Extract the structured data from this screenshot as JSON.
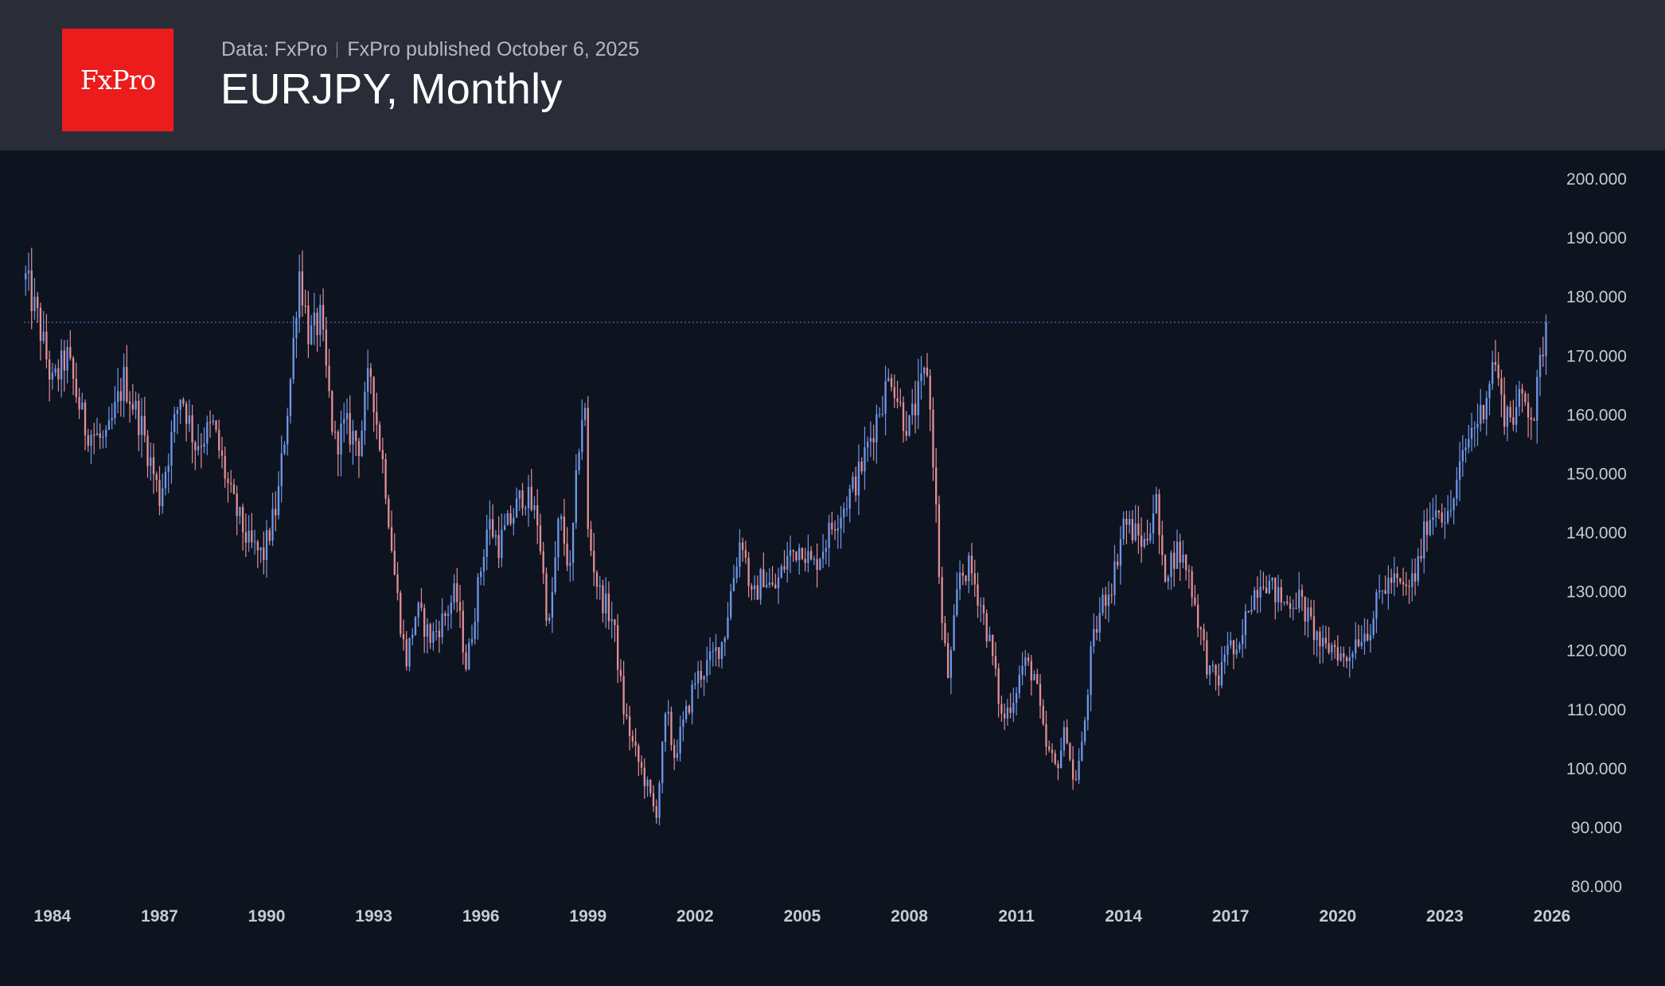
{
  "header": {
    "logo_text": "FxPro",
    "source": "Data: FxPro",
    "published": "FxPro published October 6, 2025",
    "title": "EURJPY, Monthly"
  },
  "colors": {
    "background": "#0e1320",
    "header_bg": "#2a2d38",
    "logo_bg": "#ec1c1c",
    "up": "#6f97e6",
    "down": "#e08f93",
    "axis_text": "#c7cad2",
    "reference_line": "#4a6ba8"
  },
  "chart_data": {
    "type": "candlestick",
    "title": "EURJPY, Monthly",
    "xlabel": "",
    "ylabel": "",
    "x_range": [
      1983.2,
      2026.0
    ],
    "ylim": [
      80,
      200
    ],
    "x_ticks": [
      "1984",
      "1987",
      "1990",
      "1993",
      "1996",
      "1999",
      "2002",
      "2005",
      "2008",
      "2011",
      "2014",
      "2017",
      "2020",
      "2023",
      "2026"
    ],
    "y_ticks": [
      "80.000",
      "90.000",
      "100.000",
      "110.000",
      "120.000",
      "130.000",
      "140.000",
      "150.000",
      "160.000",
      "170.000",
      "180.000",
      "190.000",
      "200.000"
    ],
    "reference_line": {
      "value": 175.7,
      "style": "dotted"
    },
    "candle_interval": "monthly",
    "price_path": [
      [
        1983.25,
        183
      ],
      [
        1983.6,
        176
      ],
      [
        1984.0,
        165
      ],
      [
        1984.4,
        170
      ],
      [
        1984.9,
        158
      ],
      [
        1985.5,
        155
      ],
      [
        1986.0,
        166
      ],
      [
        1986.5,
        158
      ],
      [
        1987.0,
        146
      ],
      [
        1987.6,
        164
      ],
      [
        1988.0,
        155
      ],
      [
        1988.5,
        158
      ],
      [
        1989.0,
        146
      ],
      [
        1989.5,
        138
      ],
      [
        1989.9,
        136
      ],
      [
        1990.3,
        145
      ],
      [
        1990.7,
        168
      ],
      [
        1990.9,
        185
      ],
      [
        1991.2,
        173
      ],
      [
        1991.5,
        176
      ],
      [
        1991.9,
        155
      ],
      [
        1992.2,
        158
      ],
      [
        1992.6,
        155
      ],
      [
        1992.9,
        168
      ],
      [
        1993.1,
        158
      ],
      [
        1993.3,
        150
      ],
      [
        1993.6,
        132
      ],
      [
        1993.9,
        118
      ],
      [
        1994.2,
        127
      ],
      [
        1994.6,
        122
      ],
      [
        1995.0,
        126
      ],
      [
        1995.3,
        130
      ],
      [
        1995.6,
        117
      ],
      [
        1995.9,
        130
      ],
      [
        1996.2,
        142
      ],
      [
        1996.5,
        138
      ],
      [
        1996.9,
        143
      ],
      [
        1997.2,
        147
      ],
      [
        1997.6,
        142
      ],
      [
        1997.9,
        123
      ],
      [
        1998.2,
        143
      ],
      [
        1998.5,
        133
      ],
      [
        1998.8,
        160
      ],
      [
        1998.95,
        160
      ],
      [
        1999.0,
        140
      ],
      [
        1999.3,
        130
      ],
      [
        1999.7,
        125
      ],
      [
        2000.0,
        110
      ],
      [
        2000.3,
        103
      ],
      [
        2000.6,
        98
      ],
      [
        2000.9,
        92
      ],
      [
        2001.2,
        110
      ],
      [
        2001.4,
        102
      ],
      [
        2001.7,
        108
      ],
      [
        2002.0,
        115
      ],
      [
        2002.4,
        118
      ],
      [
        2002.8,
        122
      ],
      [
        2003.0,
        130
      ],
      [
        2003.3,
        140
      ],
      [
        2003.6,
        128
      ],
      [
        2003.9,
        133
      ],
      [
        2004.2,
        130
      ],
      [
        2004.6,
        136
      ],
      [
        2005.0,
        138
      ],
      [
        2005.3,
        134
      ],
      [
        2005.6,
        138
      ],
      [
        2005.9,
        142
      ],
      [
        2006.2,
        145
      ],
      [
        2006.6,
        150
      ],
      [
        2006.9,
        156
      ],
      [
        2007.2,
        162
      ],
      [
        2007.5,
        167
      ],
      [
        2007.8,
        160
      ],
      [
        2008.0,
        158
      ],
      [
        2008.3,
        164
      ],
      [
        2008.5,
        168
      ],
      [
        2008.7,
        150
      ],
      [
        2008.9,
        125
      ],
      [
        2009.1,
        115
      ],
      [
        2009.4,
        133
      ],
      [
        2009.7,
        134
      ],
      [
        2010.0,
        128
      ],
      [
        2010.3,
        120
      ],
      [
        2010.6,
        108
      ],
      [
        2010.9,
        112
      ],
      [
        2011.2,
        118
      ],
      [
        2011.5,
        116
      ],
      [
        2011.8,
        104
      ],
      [
        2012.1,
        100
      ],
      [
        2012.4,
        107
      ],
      [
        2012.6,
        97
      ],
      [
        2012.85,
        104
      ],
      [
        2013.1,
        120
      ],
      [
        2013.4,
        128
      ],
      [
        2013.7,
        132
      ],
      [
        2014.0,
        142
      ],
      [
        2014.3,
        140
      ],
      [
        2014.6,
        138
      ],
      [
        2014.9,
        146
      ],
      [
        2015.1,
        133
      ],
      [
        2015.5,
        137
      ],
      [
        2015.8,
        134
      ],
      [
        2016.1,
        125
      ],
      [
        2016.4,
        116
      ],
      [
        2016.7,
        115
      ],
      [
        2016.9,
        122
      ],
      [
        2017.2,
        118
      ],
      [
        2017.5,
        128
      ],
      [
        2017.9,
        133
      ],
      [
        2018.2,
        130
      ],
      [
        2018.5,
        128
      ],
      [
        2018.9,
        129
      ],
      [
        2019.2,
        125
      ],
      [
        2019.6,
        120
      ],
      [
        2019.9,
        121
      ],
      [
        2020.2,
        118
      ],
      [
        2020.5,
        122
      ],
      [
        2020.9,
        124
      ],
      [
        2021.2,
        130
      ],
      [
        2021.5,
        132
      ],
      [
        2021.9,
        130
      ],
      [
        2022.2,
        133
      ],
      [
        2022.5,
        142
      ],
      [
        2022.8,
        145
      ],
      [
        2023.1,
        142
      ],
      [
        2023.4,
        150
      ],
      [
        2023.7,
        157
      ],
      [
        2024.0,
        160
      ],
      [
        2024.4,
        170
      ],
      [
        2024.6,
        161
      ],
      [
        2024.9,
        160
      ],
      [
        2025.2,
        163
      ],
      [
        2025.5,
        160
      ],
      [
        2025.75,
        172
      ],
      [
        2025.9,
        175.7
      ]
    ]
  }
}
